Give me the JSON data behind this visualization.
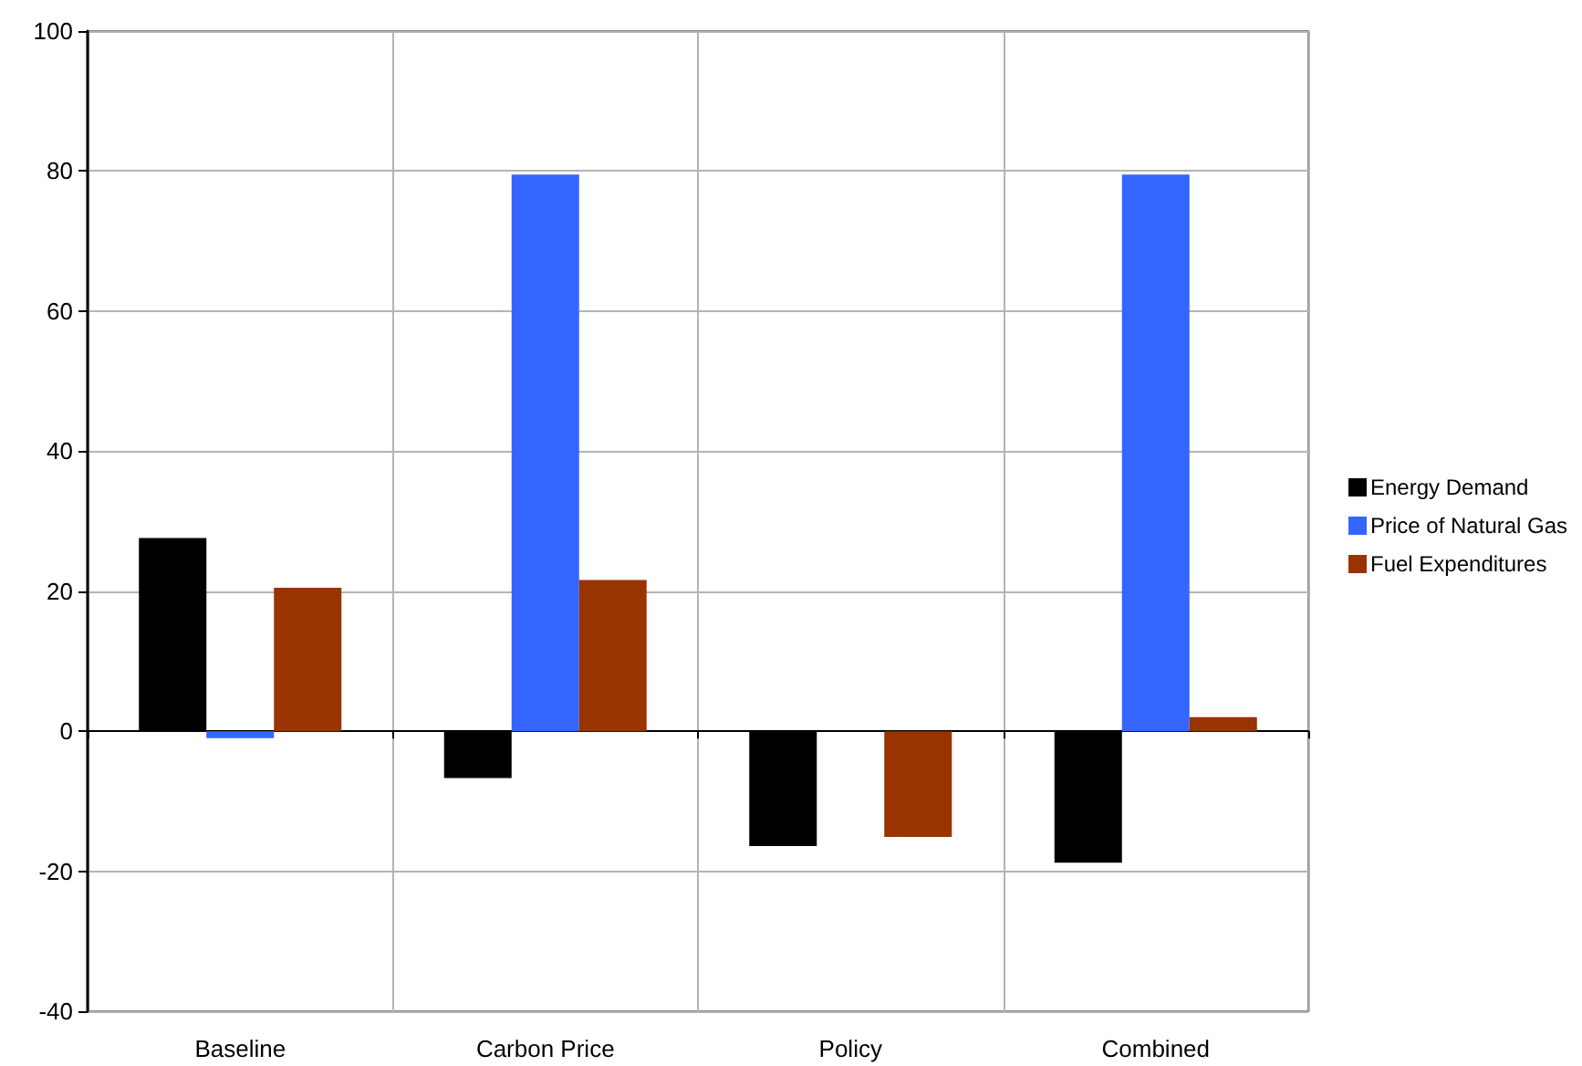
{
  "chart_data": {
    "type": "bar",
    "categories": [
      "Baseline",
      "Carbon Price",
      "Policy",
      "Combined"
    ],
    "series": [
      {
        "name": "Energy Demand",
        "color": "#000000",
        "values": [
          27.6,
          -6.7,
          -16.4,
          -18.8
        ]
      },
      {
        "name": "Price of Natural Gas",
        "color": "#3366ff",
        "values": [
          -1.0,
          79.5,
          0,
          79.5
        ]
      },
      {
        "name": "Fuel Expenditures",
        "color": "#993300",
        "values": [
          20.5,
          21.6,
          -15.1,
          2.0
        ]
      }
    ],
    "ylim": [
      -40,
      100
    ],
    "yticks": [
      -40,
      -20,
      0,
      20,
      40,
      60,
      80,
      100
    ],
    "grid": true,
    "legend": "right"
  }
}
